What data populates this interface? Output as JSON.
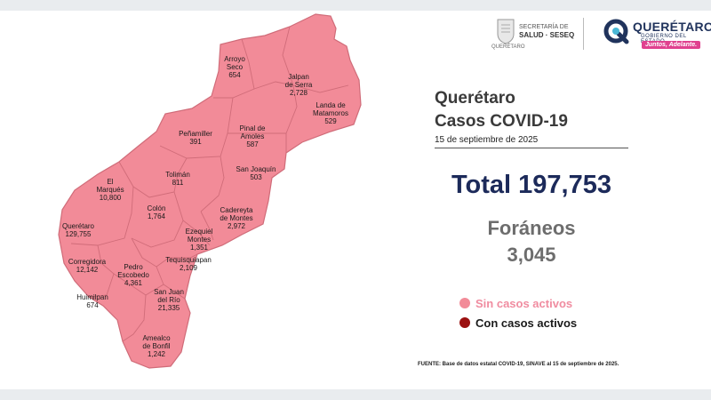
{
  "colors": {
    "sin_casos": "#f28b98",
    "con_casos": "#9b1010",
    "title": "#3a3a3a",
    "total": "#1c2a5a",
    "foraneos": "#6d6d6d"
  },
  "header": {
    "secretaria_line1": "SECRETARÍA DE",
    "secretaria_line2": "SALUD · SESEQ",
    "seal_caption": "QUERÉTARO",
    "state_logo_name": "QUERÉTARO",
    "state_logo_sub": "GOBIERNO DEL ESTADO",
    "state_logo_tag": "Juntos, Adelante."
  },
  "title_line1": "Querétaro",
  "title_line2": "Casos COVID-19",
  "date": "15 de septiembre de 2025",
  "total_text": "Total 197,753",
  "foraneos_label": "Foráneos",
  "foraneos_value": "3,045",
  "legend": {
    "sin": "Sin casos activos",
    "con": "Con casos activos"
  },
  "source": "FUENTE:  Base de datos estatal  COVID-19,  SINAVE  al 15 de septiembre de 2025.",
  "municipalities": [
    {
      "name": "Arroyo Seco",
      "line1": "Arroyo",
      "line2": "Seco",
      "cases": "654"
    },
    {
      "name": "Jalpan de Serra",
      "line1": "Jalpan",
      "line2": "de Serra",
      "cases": "2,728"
    },
    {
      "name": "Landa de Matamoros",
      "line1": "Landa de",
      "line2": "Matamoros",
      "cases": "529"
    },
    {
      "name": "Peñamiller",
      "line1": "Peñamiller",
      "line2": "",
      "cases": "391"
    },
    {
      "name": "Pinal de Amoles",
      "line1": "Pinal de",
      "line2": "Amoles",
      "cases": "587"
    },
    {
      "name": "San Joaquín",
      "line1": "San Joaquín",
      "line2": "",
      "cases": "503"
    },
    {
      "name": "Tolimán",
      "line1": "Tolimán",
      "line2": "",
      "cases": "811"
    },
    {
      "name": "El Marqués",
      "line1": "El",
      "line2": "Marqués",
      "cases": "10,800"
    },
    {
      "name": "Colón",
      "line1": "Colón",
      "line2": "",
      "cases": "1,764"
    },
    {
      "name": "Cadereyta de Montes",
      "line1": "Cadereyta",
      "line2": "de Montes",
      "cases": "2,972"
    },
    {
      "name": "Querétaro",
      "line1": "Querétaro",
      "line2": "",
      "cases": "129,755"
    },
    {
      "name": "Ezequiel Montes",
      "line1": "Ezequiel",
      "line2": "Montes",
      "cases": "1,351"
    },
    {
      "name": "Corregidora",
      "line1": "Corregidora",
      "line2": "",
      "cases": "12,142"
    },
    {
      "name": "Tequisquiapan",
      "line1": "Tequisquiapan",
      "line2": "",
      "cases": "2,109"
    },
    {
      "name": "Pedro Escobedo",
      "line1": "Pedro",
      "line2": "Escobedo",
      "cases": "4,361"
    },
    {
      "name": "San Juan del Río",
      "line1": "San Juan",
      "line2": "del Río",
      "cases": "21,335"
    },
    {
      "name": "Huimilpan",
      "line1": "Huimilpan",
      "line2": "",
      "cases": "674"
    },
    {
      "name": "Amealco de Bonfil",
      "line1": "Amealco",
      "line2": "de Bonfil",
      "cases": "1,242"
    }
  ]
}
